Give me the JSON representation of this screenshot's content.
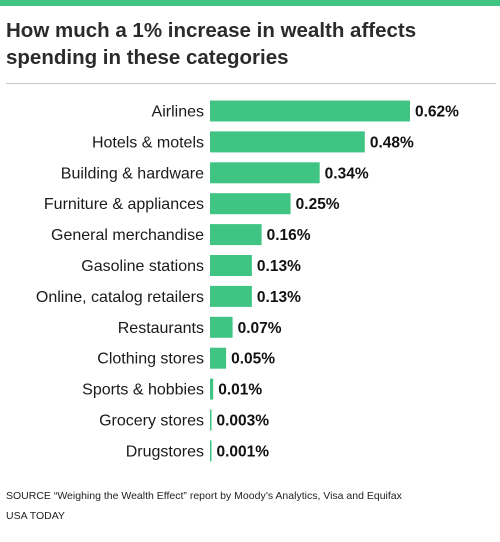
{
  "colors": {
    "bar": "#3fc484",
    "rule": "#3fc484"
  },
  "header": {
    "title": "How much a 1% increase in wealth affects spending in these categories"
  },
  "chart_data": {
    "type": "bar",
    "orientation": "horizontal",
    "title": "How much a 1% increase in wealth affects spending in these categories",
    "categories": [
      "Airlines",
      "Hotels & motels",
      "Building & hardware",
      "Furniture & appliances",
      "General merchandise",
      "Gasoline stations",
      "Online, catalog retailers",
      "Restaurants",
      "Clothing stores",
      "Sports & hobbies",
      "Grocery stores",
      "Drugstores"
    ],
    "values": [
      0.62,
      0.48,
      0.34,
      0.25,
      0.16,
      0.13,
      0.13,
      0.07,
      0.05,
      0.01,
      0.003,
      0.001
    ],
    "value_labels": [
      "0.62%",
      "0.48%",
      "0.34%",
      "0.25%",
      "0.16%",
      "0.13%",
      "0.13%",
      "0.07%",
      "0.05%",
      "0.01%",
      "0.003%",
      "0.001%"
    ],
    "unit": "%",
    "xlim": [
      0,
      0.62
    ],
    "grid": false,
    "legend": "none"
  },
  "footer": {
    "source": "SOURCE “Weighing the Wealth Effect” report by Moody’s Analytics, Visa and Equifax",
    "credit": "USA TODAY"
  }
}
